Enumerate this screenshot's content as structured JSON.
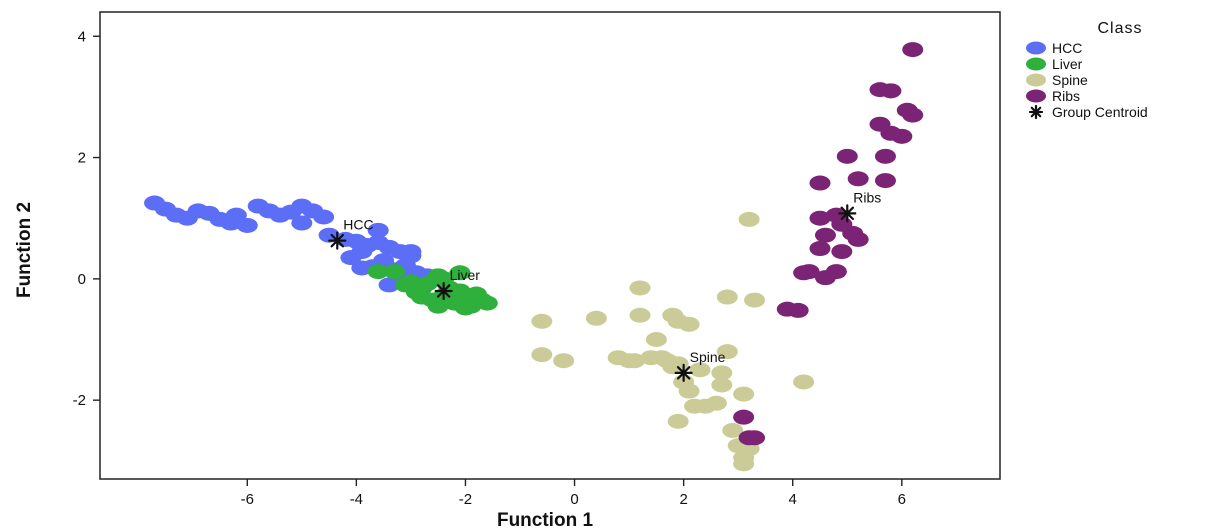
{
  "chart_data": {
    "type": "scatter",
    "title": "",
    "xlabel": "Function 1",
    "ylabel": "Function 2",
    "xlim": [
      -8.7,
      7.8
    ],
    "ylim": [
      -3.3,
      4.4
    ],
    "xticks": [
      -6,
      -4,
      -2,
      0,
      2,
      4,
      6
    ],
    "yticks": [
      -2,
      0,
      2,
      4
    ],
    "grid": false,
    "legend": {
      "title": "Class",
      "placement": "right"
    },
    "series": [
      {
        "name": "HCC",
        "color": "#5b6ef5",
        "points": [
          [
            -7.7,
            1.25
          ],
          [
            -7.5,
            1.15
          ],
          [
            -7.3,
            1.05
          ],
          [
            -7.1,
            1.0
          ],
          [
            -6.9,
            1.12
          ],
          [
            -6.7,
            1.08
          ],
          [
            -6.5,
            0.98
          ],
          [
            -6.3,
            0.92
          ],
          [
            -6.0,
            0.88
          ],
          [
            -6.2,
            1.05
          ],
          [
            -5.8,
            1.2
          ],
          [
            -5.6,
            1.12
          ],
          [
            -5.4,
            1.05
          ],
          [
            -5.2,
            1.1
          ],
          [
            -5.0,
            1.2
          ],
          [
            -4.8,
            1.12
          ],
          [
            -4.6,
            1.02
          ],
          [
            -5.0,
            0.92
          ],
          [
            -4.5,
            0.72
          ],
          [
            -4.2,
            0.65
          ],
          [
            -4.0,
            0.62
          ],
          [
            -3.8,
            0.55
          ],
          [
            -3.6,
            0.6
          ],
          [
            -3.4,
            0.52
          ],
          [
            -3.2,
            0.45
          ],
          [
            -3.0,
            0.38
          ],
          [
            -3.5,
            0.3
          ],
          [
            -3.7,
            0.2
          ],
          [
            -3.9,
            0.18
          ],
          [
            -3.3,
            0.15
          ],
          [
            -3.1,
            0.22
          ],
          [
            -2.9,
            0.1
          ],
          [
            -2.7,
            0.05
          ],
          [
            -3.6,
            0.8
          ],
          [
            -3.9,
            0.45
          ],
          [
            -4.1,
            0.35
          ],
          [
            -3.4,
            -0.1
          ],
          [
            -2.8,
            -0.15
          ],
          [
            -3.0,
            0.45
          ],
          [
            -3.2,
            0.0
          ]
        ]
      },
      {
        "name": "Liver",
        "color": "#2faf3c",
        "points": [
          [
            -3.3,
            0.12
          ],
          [
            -3.6,
            0.12
          ],
          [
            -3.1,
            -0.1
          ],
          [
            -2.9,
            -0.22
          ],
          [
            -2.7,
            -0.08
          ],
          [
            -2.5,
            0.05
          ],
          [
            -2.8,
            -0.3
          ],
          [
            -2.6,
            -0.35
          ],
          [
            -2.4,
            -0.28
          ],
          [
            -2.3,
            -0.15
          ],
          [
            -2.1,
            -0.2
          ],
          [
            -2.0,
            -0.3
          ],
          [
            -1.8,
            -0.25
          ],
          [
            -1.6,
            -0.4
          ],
          [
            -2.2,
            -0.4
          ],
          [
            -2.0,
            -0.48
          ],
          [
            -1.9,
            -0.45
          ],
          [
            -2.4,
            0.0
          ],
          [
            -2.1,
            0.1
          ],
          [
            -1.7,
            -0.35
          ],
          [
            -3.0,
            -0.05
          ],
          [
            -2.5,
            -0.45
          ]
        ]
      },
      {
        "name": "Spine",
        "color": "#cbcb98",
        "points": [
          [
            -0.6,
            -0.7
          ],
          [
            -0.6,
            -1.25
          ],
          [
            -0.2,
            -1.35
          ],
          [
            0.4,
            -0.65
          ],
          [
            0.8,
            -1.3
          ],
          [
            1.1,
            -1.35
          ],
          [
            1.2,
            -0.15
          ],
          [
            1.2,
            -0.6
          ],
          [
            1.4,
            -1.3
          ],
          [
            1.5,
            -1.0
          ],
          [
            1.6,
            -1.3
          ],
          [
            1.7,
            -1.35
          ],
          [
            1.8,
            -1.45
          ],
          [
            1.8,
            -0.6
          ],
          [
            1.9,
            -0.7
          ],
          [
            2.0,
            -1.7
          ],
          [
            2.1,
            -0.75
          ],
          [
            2.1,
            -1.85
          ],
          [
            2.2,
            -2.1
          ],
          [
            2.4,
            -2.1
          ],
          [
            2.6,
            -2.05
          ],
          [
            2.7,
            -1.55
          ],
          [
            2.8,
            -1.2
          ],
          [
            2.8,
            -0.3
          ],
          [
            2.7,
            -1.75
          ],
          [
            2.9,
            -2.5
          ],
          [
            3.0,
            -2.75
          ],
          [
            3.1,
            -2.95
          ],
          [
            3.1,
            -3.05
          ],
          [
            3.2,
            -2.8
          ],
          [
            3.2,
            0.98
          ],
          [
            3.3,
            -0.35
          ],
          [
            3.1,
            -1.9
          ],
          [
            4.2,
            -1.7
          ],
          [
            1.9,
            -2.35
          ],
          [
            1.0,
            -1.35
          ],
          [
            1.9,
            -1.4
          ],
          [
            2.3,
            -1.5
          ]
        ]
      },
      {
        "name": "Ribs",
        "color": "#7b2475",
        "points": [
          [
            6.2,
            3.78
          ],
          [
            5.8,
            3.1
          ],
          [
            5.6,
            3.12
          ],
          [
            6.1,
            2.78
          ],
          [
            6.2,
            2.7
          ],
          [
            5.6,
            2.55
          ],
          [
            5.8,
            2.4
          ],
          [
            6.0,
            2.35
          ],
          [
            5.7,
            2.02
          ],
          [
            5.2,
            1.65
          ],
          [
            5.0,
            2.02
          ],
          [
            4.5,
            1.58
          ],
          [
            5.7,
            1.62
          ],
          [
            4.8,
            1.05
          ],
          [
            4.5,
            1.0
          ],
          [
            4.9,
            0.9
          ],
          [
            5.1,
            0.75
          ],
          [
            5.2,
            0.65
          ],
          [
            4.6,
            0.72
          ],
          [
            4.5,
            0.5
          ],
          [
            4.9,
            0.45
          ],
          [
            4.3,
            0.12
          ],
          [
            4.2,
            0.1
          ],
          [
            4.6,
            0.02
          ],
          [
            4.8,
            0.12
          ],
          [
            3.9,
            -0.5
          ],
          [
            4.1,
            -0.52
          ],
          [
            3.3,
            -2.62
          ],
          [
            3.2,
            -2.62
          ],
          [
            3.1,
            -2.28
          ]
        ]
      }
    ],
    "centroids": {
      "name": "Group Centroid",
      "color": "#111111",
      "points": [
        {
          "label": "HCC",
          "x": -4.35,
          "y": 0.63
        },
        {
          "label": "Liver",
          "x": -2.4,
          "y": -0.2
        },
        {
          "label": "Spine",
          "x": 2.0,
          "y": -1.55
        },
        {
          "label": "Ribs",
          "x": 5.0,
          "y": 1.08
        }
      ]
    }
  }
}
